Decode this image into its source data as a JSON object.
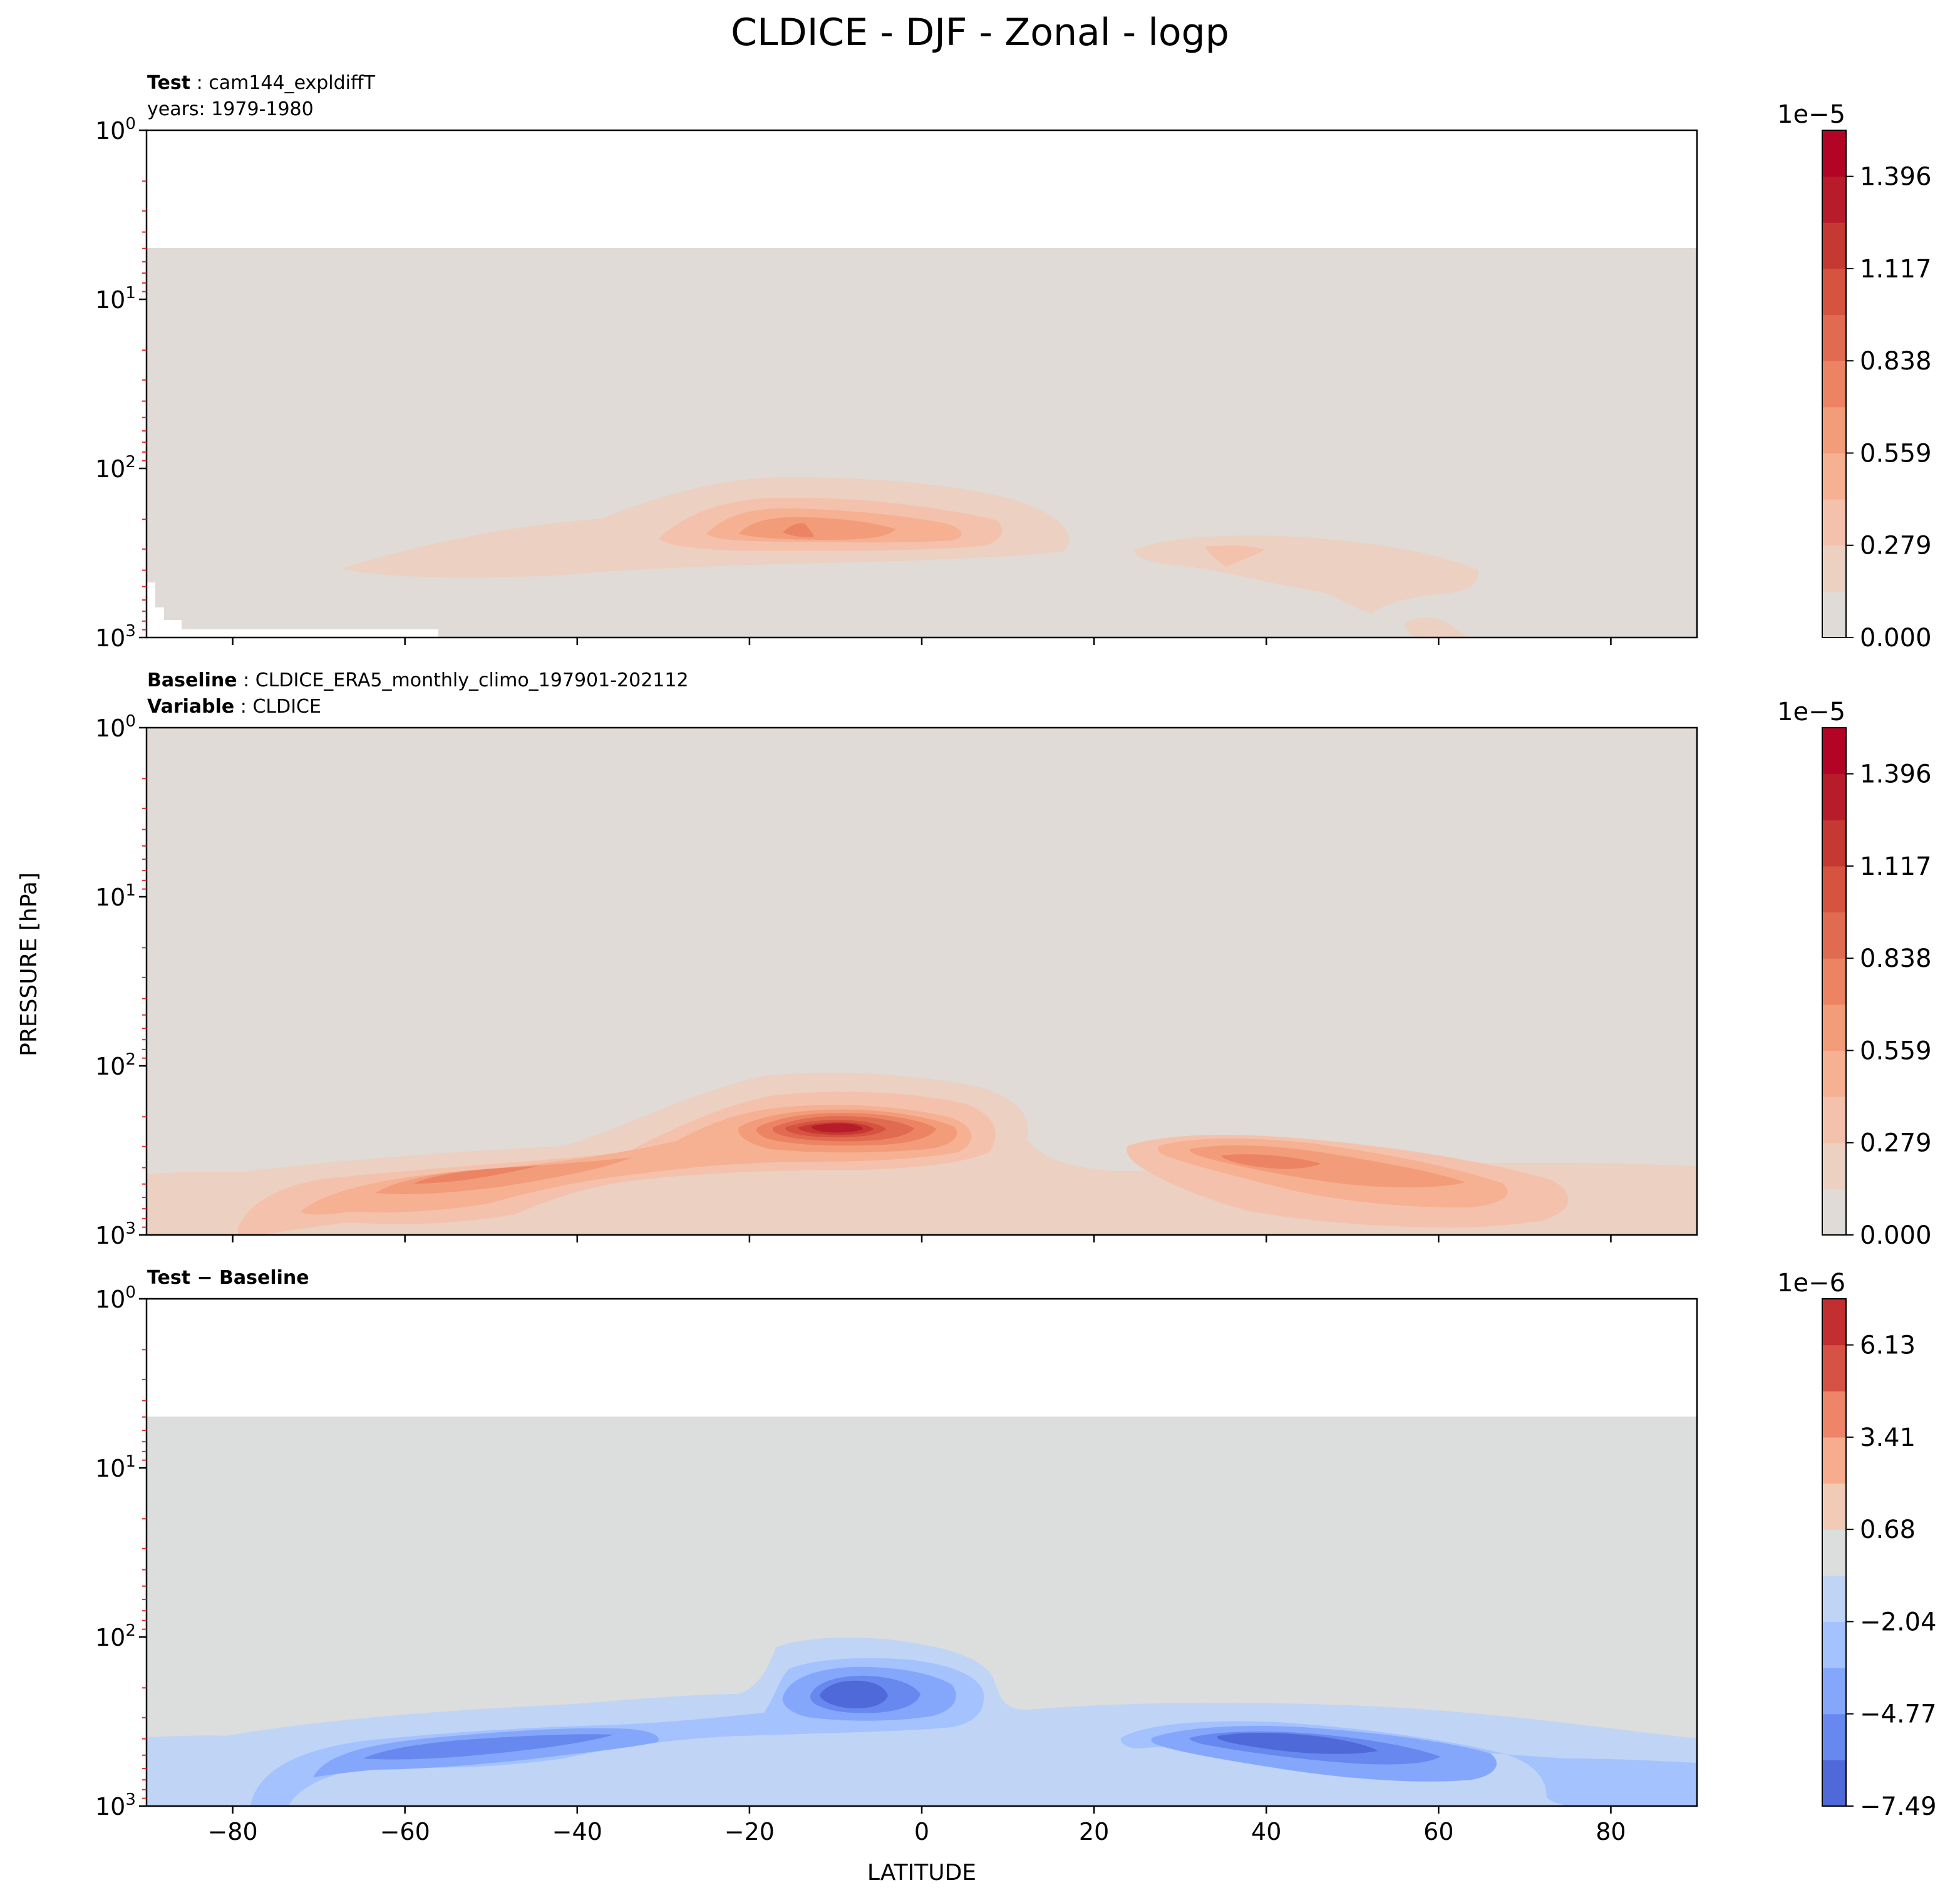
{
  "figure": {
    "title": "CLDICE - DJF - Zonal - logp",
    "ylabel": "PRESSURE [hPa]",
    "xlabel": "LATITUDE"
  },
  "chart_data": [
    {
      "type": "heatmap",
      "panel": "test",
      "header": [
        {
          "bold": "Test",
          "sep": " : ",
          "text": "cam144_expldiffT"
        },
        {
          "bold": "",
          "sep": "",
          "text": "years: 1979-1980"
        }
      ],
      "x_ticks": [
        -80,
        -60,
        -40,
        -20,
        0,
        20,
        40,
        60,
        80
      ],
      "xlim": [
        -90,
        90
      ],
      "y_ticks": [
        "10^0",
        "10^1",
        "10^2",
        "10^3"
      ],
      "ylim": [
        1,
        1000
      ],
      "y_scale": "log",
      "model_top_hpa": 5,
      "colorbar": {
        "multiplier": "1e−5",
        "ticks": [
          "1.396",
          "1.117",
          "0.838",
          "0.559",
          "0.279",
          "0.000"
        ],
        "range": [
          0.0,
          1.535
        ],
        "levels": 11,
        "colors": [
          "#e0dbd6",
          "#ecd0c2",
          "#f4c2ac",
          "#f6b092",
          "#f39c7a",
          "#ec8463",
          "#e16b50",
          "#d5533f",
          "#c53932",
          "#b81b29",
          "#b40426"
        ]
      },
      "features": [
        {
          "lat": -12,
          "p": 230,
          "max": 0.75
        },
        {
          "lat": -25,
          "p": 300,
          "max": 0.3
        },
        {
          "lat": 40,
          "p": 350,
          "max": 0.3
        }
      ]
    },
    {
      "type": "heatmap",
      "panel": "baseline",
      "header": [
        {
          "bold": "Baseline",
          "sep": " : ",
          "text": "CLDICE_ERA5_monthly_climo_197901-202112"
        },
        {
          "bold": "Variable",
          "sep": " : ",
          "text": "CLDICE"
        }
      ],
      "x_ticks": [
        -80,
        -60,
        -40,
        -20,
        0,
        20,
        40,
        60,
        80
      ],
      "xlim": [
        -90,
        90
      ],
      "y_ticks": [
        "10^0",
        "10^1",
        "10^2",
        "10^3"
      ],
      "ylim": [
        1,
        1000
      ],
      "y_scale": "log",
      "colorbar": {
        "multiplier": "1e−5",
        "ticks": [
          "1.396",
          "1.117",
          "0.838",
          "0.559",
          "0.279",
          "0.000"
        ],
        "range": [
          0.0,
          1.535
        ],
        "levels": 11,
        "colors": [
          "#e0dbd6",
          "#ecd0c2",
          "#f4c2ac",
          "#f6b092",
          "#f39c7a",
          "#ec8463",
          "#e16b50",
          "#d5533f",
          "#c53932",
          "#b81b29",
          "#b40426"
        ]
      },
      "features": [
        {
          "lat": -8,
          "p": 230,
          "max": 1.5
        },
        {
          "lat": -55,
          "p": 450,
          "max": 0.7
        },
        {
          "lat": 45,
          "p": 400,
          "max": 0.8
        }
      ]
    },
    {
      "type": "heatmap",
      "panel": "difference",
      "header": [
        {
          "bold": "Test − Baseline",
          "sep": "",
          "text": ""
        }
      ],
      "x_ticks": [
        -80,
        -60,
        -40,
        -20,
        0,
        20,
        40,
        60,
        80
      ],
      "xlim": [
        -90,
        90
      ],
      "y_ticks": [
        "10^0",
        "10^1",
        "10^2",
        "10^3"
      ],
      "ylim": [
        1,
        1000
      ],
      "y_scale": "log",
      "model_top_hpa": 5,
      "colorbar": {
        "multiplier": "1e−6",
        "ticks": [
          "6.13",
          "3.41",
          "0.68",
          "−2.04",
          "−4.77",
          "−7.49"
        ],
        "range": [
          -7.49,
          7.49
        ],
        "levels": 11,
        "colors": [
          "#4f69d9",
          "#6788ee",
          "#84a7fc",
          "#a3c2fe",
          "#c0d4f5",
          "#dcdddd",
          "#f2cbb7",
          "#f7ac8e",
          "#ee8468",
          "#d65244",
          "#c32e31"
        ]
      },
      "features": [
        {
          "lat": -8,
          "p": 250,
          "min": -7.0
        },
        {
          "lat": -55,
          "p": 450,
          "min": -4.8
        },
        {
          "lat": 45,
          "p": 420,
          "min": -6.5
        }
      ]
    }
  ]
}
